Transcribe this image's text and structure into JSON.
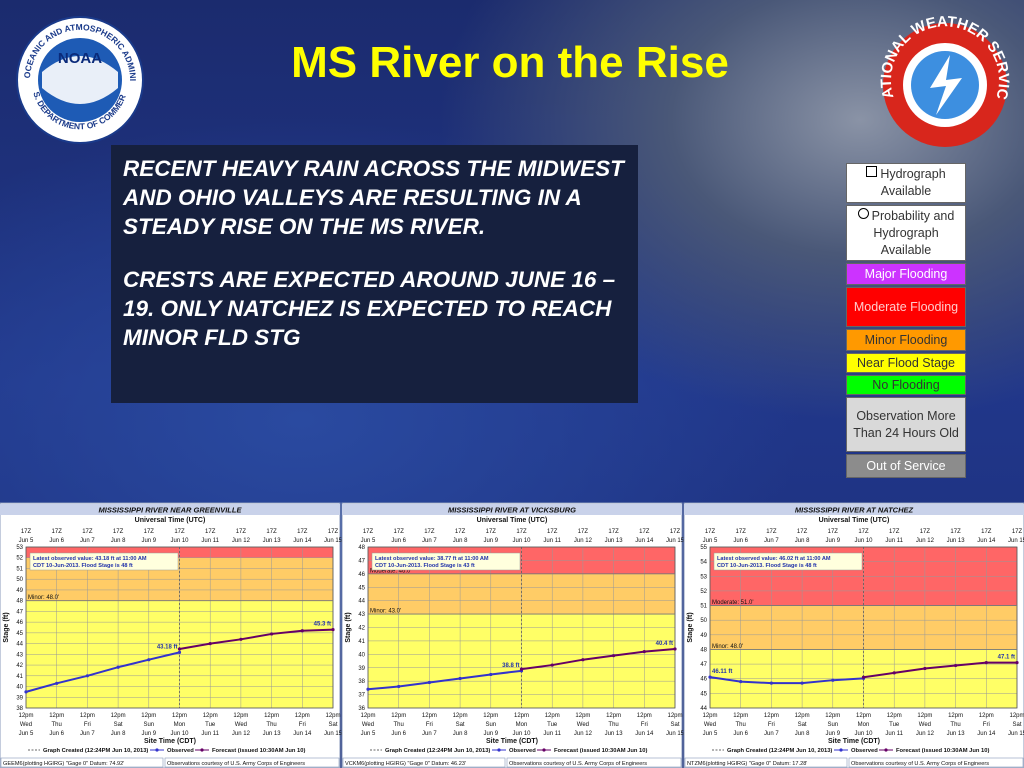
{
  "title": "MS River on the Rise",
  "text_box": {
    "paragraphs": [
      "RECENT HEAVY RAIN ACROSS THE MIDWEST AND OHIO VALLEYS ARE RESULTING IN A STEADY RISE ON THE MS RIVER.",
      "CRESTS ARE EXPECTED AROUND JUNE 16 – 19. ONLY NATCHEZ IS EXPECTED TO REACH MINOR FLD STG"
    ]
  },
  "logos": {
    "noaa": "NOAA",
    "noaa_ring_top": "NATIONAL OCEANIC AND ATMOSPHERIC ADMINISTRATION",
    "noaa_ring_bottom": "U.S. DEPARTMENT OF COMMERCE",
    "nws_ring": "NATIONAL WEATHER SERVICE"
  },
  "legend": [
    {
      "label": "Hydrograph Available",
      "color": "#ffffff",
      "text_color": "#333333"
    },
    {
      "label": "Probability and Hydrograph Available",
      "color": "#ffffff",
      "text_color": "#333333"
    },
    {
      "label": "Major Flooding",
      "color": "#cc33ff",
      "text_color": "#ffffff"
    },
    {
      "label": "Moderate Flooding",
      "color": "#ff0000",
      "text_color": "#ffcccc"
    },
    {
      "label": "Minor Flooding",
      "color": "#ff9900",
      "text_color": "#333333"
    },
    {
      "label": "Near Flood Stage",
      "color": "#ffff00",
      "text_color": "#333333"
    },
    {
      "label": "No Flooding",
      "color": "#00ff00",
      "text_color": "#333333"
    },
    {
      "label": "Observation More Than 24 Hours Old",
      "color": "#d9d9d9",
      "text_color": "#333333"
    },
    {
      "label": "Out of Service",
      "color": "#8c8c8c",
      "text_color": "#ffffff"
    }
  ],
  "chart_data": [
    {
      "type": "line",
      "title": "MISSISSIPPI RIVER NEAR GREENVILLE",
      "top_axis_label": "Universal Time (UTC)",
      "xlabel": "Site Time (CDT)",
      "ylabel": "Stage (ft)",
      "top_time": "17Z",
      "bottom_time": "12pm",
      "categories": [
        "Jun 5",
        "Jun 6",
        "Jun 7",
        "Jun 8",
        "Jun 9",
        "Jun 10",
        "Jun 11",
        "Jun 12",
        "Jun 13",
        "Jun 14",
        "Jun 15"
      ],
      "weekdays": [
        "Wed",
        "Thu",
        "Fri",
        "Sat",
        "Sun",
        "Mon",
        "Tue",
        "Wed",
        "Thu",
        "Fri",
        "Sat"
      ],
      "ylim": [
        38,
        53
      ],
      "yticks": [
        38,
        39,
        40,
        41,
        42,
        43,
        44,
        45,
        46,
        47,
        48,
        49,
        50,
        51,
        52,
        53
      ],
      "bands": [
        {
          "from": 38,
          "to": 48,
          "color": "#ffff66"
        },
        {
          "from": 48,
          "to": 52,
          "color": "#ffcc66"
        },
        {
          "from": 52,
          "to": 53,
          "color": "#ff6666"
        }
      ],
      "thresholds": [
        {
          "label": "Minor: 48.0'",
          "value": 48
        }
      ],
      "latest_note": [
        "Latest observed value: 43.18 ft at 11:00 AM",
        "CDT 10-Jun-2013.  Flood Stage is 48 ft"
      ],
      "graph_created": "Graph Created (12:24PM Jun 10, 2013)",
      "series": [
        {
          "name": "Observed",
          "color": "#3333cc",
          "values": [
            39.5,
            40.3,
            41.0,
            41.8,
            42.5,
            43.18,
            null,
            null,
            null,
            null,
            null
          ],
          "value_labels": [
            null,
            null,
            null,
            null,
            null,
            "43.18 ft",
            null,
            null,
            null,
            null,
            null
          ]
        },
        {
          "name": "Forecast (issued 10:30AM Jun 10)",
          "color": "#660066",
          "values": [
            null,
            null,
            null,
            null,
            null,
            43.5,
            44.0,
            44.4,
            44.9,
            45.2,
            45.3
          ],
          "value_labels": [
            null,
            null,
            null,
            null,
            null,
            null,
            null,
            null,
            null,
            null,
            "45.3 ft"
          ]
        }
      ],
      "footer": [
        "GEEM6(plotting HGIRG) \"Gage 0\" Datum: 74.92'",
        "Observations courtesy of U.S. Army Corps of Engineers"
      ]
    },
    {
      "type": "line",
      "title": "MISSISSIPPI RIVER AT VICKSBURG",
      "top_axis_label": "Universal Time (UTC)",
      "xlabel": "Site Time (CDT)",
      "ylabel": "Stage (ft)",
      "top_time": "17Z",
      "bottom_time": "12pm",
      "categories": [
        "Jun 5",
        "Jun 6",
        "Jun 7",
        "Jun 8",
        "Jun 9",
        "Jun 10",
        "Jun 11",
        "Jun 12",
        "Jun 13",
        "Jun 14",
        "Jun 15"
      ],
      "weekdays": [
        "Wed",
        "Thu",
        "Fri",
        "Sat",
        "Sun",
        "Mon",
        "Tue",
        "Wed",
        "Thu",
        "Fri",
        "Sat"
      ],
      "ylim": [
        36,
        48
      ],
      "yticks": [
        36,
        37,
        38,
        39,
        40,
        41,
        42,
        43,
        44,
        45,
        46,
        47,
        48
      ],
      "bands": [
        {
          "from": 36,
          "to": 43,
          "color": "#ffff66"
        },
        {
          "from": 43,
          "to": 46,
          "color": "#ffcc66"
        },
        {
          "from": 46,
          "to": 48,
          "color": "#ff6666"
        }
      ],
      "thresholds": [
        {
          "label": "Minor: 43.0'",
          "value": 43
        },
        {
          "label": "Moderate: 46.0'",
          "value": 46
        }
      ],
      "latest_note": [
        "Latest observed value: 38.77 ft at 11:00 AM",
        "CDT 10-Jun-2013.  Flood Stage is 43 ft"
      ],
      "graph_created": "Graph Created (12:24PM Jun 10, 2013)",
      "series": [
        {
          "name": "Observed",
          "color": "#3333cc",
          "values": [
            37.4,
            37.6,
            37.9,
            38.2,
            38.5,
            38.77,
            null,
            null,
            null,
            null,
            null
          ],
          "value_labels": [
            null,
            null,
            null,
            null,
            null,
            "38.8 ft",
            null,
            null,
            null,
            null,
            null
          ]
        },
        {
          "name": "Forecast (issued 10:30AM Jun 10)",
          "color": "#660066",
          "values": [
            null,
            null,
            null,
            null,
            null,
            38.9,
            39.2,
            39.6,
            39.9,
            40.2,
            40.4
          ],
          "value_labels": [
            null,
            null,
            null,
            null,
            null,
            null,
            null,
            null,
            null,
            null,
            "40.4 ft"
          ]
        }
      ],
      "footer": [
        "VCKM6(plotting HGIRG) \"Gage 0\" Datum: 46.23'",
        "Observations courtesy of U.S. Army Corps of Engineers"
      ]
    },
    {
      "type": "line",
      "title": "MISSISSIPPI RIVER AT NATCHEZ",
      "top_axis_label": "Universal Time (UTC)",
      "xlabel": "Site Time (CDT)",
      "ylabel": "Stage (ft)",
      "top_time": "17Z",
      "bottom_time": "12pm",
      "categories": [
        "Jun 5",
        "Jun 6",
        "Jun 7",
        "Jun 8",
        "Jun 9",
        "Jun 10",
        "Jun 11",
        "Jun 12",
        "Jun 13",
        "Jun 14",
        "Jun 15"
      ],
      "weekdays": [
        "Wed",
        "Thu",
        "Fri",
        "Sat",
        "Sun",
        "Mon",
        "Tue",
        "Wed",
        "Thu",
        "Fri",
        "Sat"
      ],
      "ylim": [
        44,
        55
      ],
      "yticks": [
        44,
        45,
        46,
        47,
        48,
        49,
        50,
        51,
        52,
        53,
        54,
        55
      ],
      "bands": [
        {
          "from": 44,
          "to": 48,
          "color": "#ffff66"
        },
        {
          "from": 48,
          "to": 51,
          "color": "#ffcc66"
        },
        {
          "from": 51,
          "to": 55,
          "color": "#ff6666"
        }
      ],
      "thresholds": [
        {
          "label": "Minor: 48.0'",
          "value": 48
        },
        {
          "label": "Moderate: 51.0'",
          "value": 51
        }
      ],
      "latest_note": [
        "Latest observed value: 46.02 ft at 11:00 AM",
        "CDT 10-Jun-2013.  Flood Stage is 48 ft"
      ],
      "graph_created": "Graph Created (12:24PM Jun 10, 2013)",
      "series": [
        {
          "name": "Observed",
          "color": "#3333cc",
          "values": [
            46.11,
            45.8,
            45.7,
            45.7,
            45.9,
            46.02,
            null,
            null,
            null,
            null,
            null
          ],
          "value_labels": [
            "46.11 ft",
            null,
            null,
            null,
            null,
            null,
            null,
            null,
            null,
            null,
            null
          ]
        },
        {
          "name": "Forecast (issued 10:30AM Jun 10)",
          "color": "#660066",
          "values": [
            null,
            null,
            null,
            null,
            null,
            46.1,
            46.4,
            46.7,
            46.9,
            47.1,
            47.1
          ],
          "value_labels": [
            null,
            null,
            null,
            null,
            null,
            null,
            null,
            null,
            null,
            null,
            "47.1 ft"
          ]
        }
      ],
      "footer": [
        "NTZM6(plotting HGIRG) \"Gage 0\" Datum: 17.28'",
        "Observations courtesy of U.S. Army Corps of Engineers"
      ]
    }
  ]
}
